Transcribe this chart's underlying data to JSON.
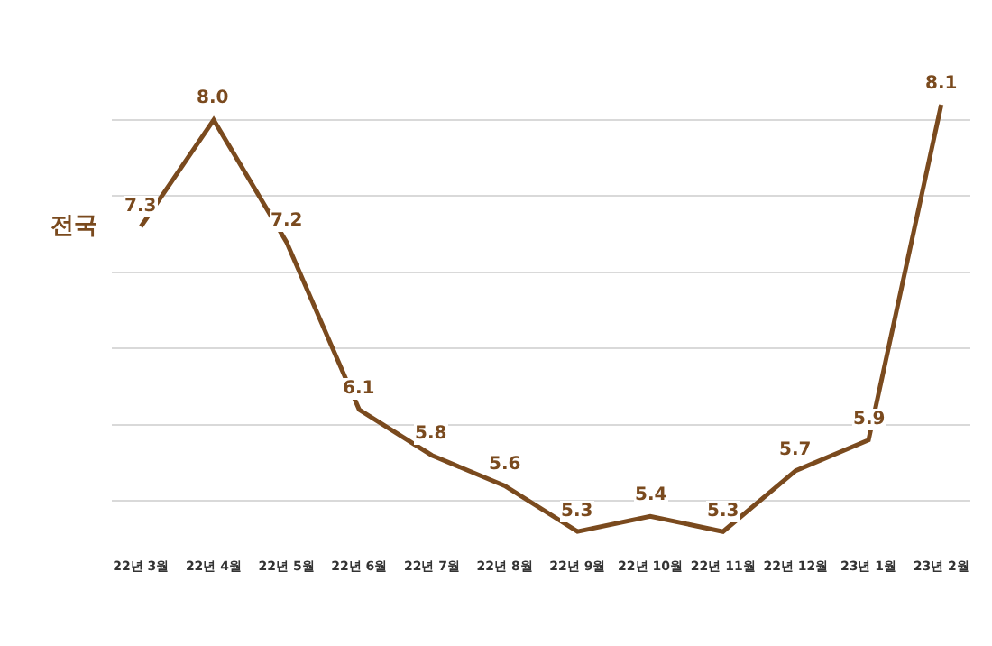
{
  "chart_data": {
    "type": "line",
    "categories": [
      "22년 3월",
      "22년 4월",
      "22년 5월",
      "22년 6월",
      "22년 7월",
      "22년 8월",
      "22년 9월",
      "22년 10월",
      "22년 11월",
      "22년 12월",
      "23년 1월",
      "23년 2월"
    ],
    "series": [
      {
        "name": "전국",
        "color": "#7a4a1e",
        "values": [
          7.3,
          8.0,
          7.2,
          6.1,
          5.8,
          5.6,
          5.3,
          5.4,
          5.3,
          5.7,
          5.9,
          8.1
        ],
        "value_labels": [
          "7.3",
          "8.0",
          "7.2",
          "6.1",
          "5.8",
          "5.6",
          "5.3",
          "5.4",
          "5.3",
          "5.7",
          "5.9",
          "8.1"
        ]
      }
    ],
    "tick_labels": "x",
    "grid": "y",
    "marker": "none",
    "line_style": "solid",
    "legend": false
  }
}
